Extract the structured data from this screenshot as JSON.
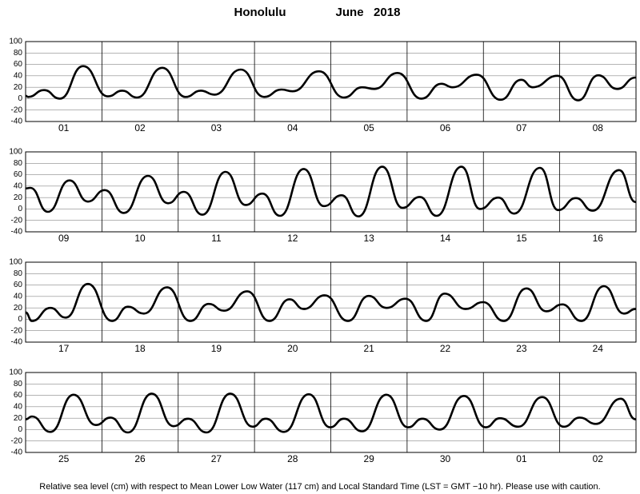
{
  "title": {
    "place": "Honolulu",
    "period": "June   2018"
  },
  "footnote": "Relative sea level (cm) with respect to Mean Lower Low Water (117 cm) and Local Standard Time (LST = GMT −10 hr). Please use with caution.",
  "chart_data": [
    {
      "type": "line",
      "color": "#000000",
      "categories": [
        "01",
        "02",
        "03",
        "04",
        "05",
        "06",
        "07",
        "08"
      ],
      "xlim": [
        0,
        192
      ],
      "xticks": [
        0,
        24,
        48,
        72,
        96,
        120,
        144,
        168,
        192
      ],
      "ylim": [
        -40,
        100
      ],
      "yticks": [
        100,
        80,
        60,
        40,
        20,
        0,
        -20,
        -40
      ],
      "grid": true,
      "x": [
        0,
        0.8,
        5.8,
        10.8,
        18.1,
        25.9,
        30.4,
        35.0,
        43.0,
        50.3,
        55.1,
        59.4,
        67.7,
        75.0,
        80.5,
        84.0,
        92.3,
        100.1,
        105.9,
        109.7,
        117.0,
        124.5,
        130.8,
        134.3,
        141.9,
        149.4,
        155.9,
        159.5,
        167.3,
        173.8,
        180.1,
        186.1,
        191.9
      ],
      "values": [
        5,
        3,
        15,
        0,
        57,
        4,
        14,
        2,
        54,
        3,
        14,
        7,
        51,
        3,
        16,
        13,
        48,
        2,
        20,
        17,
        45,
        0,
        26,
        20,
        42,
        -2,
        33,
        20,
        40,
        -3,
        41,
        17,
        37
      ]
    },
    {
      "type": "line",
      "color": "#000000",
      "categories": [
        "09",
        "10",
        "11",
        "12",
        "13",
        "14",
        "15",
        "16"
      ],
      "xlim": [
        0,
        192
      ],
      "xticks": [
        0,
        24,
        48,
        72,
        96,
        120,
        144,
        168,
        192
      ],
      "ylim": [
        -40,
        100
      ],
      "yticks": [
        100,
        80,
        60,
        40,
        20,
        0,
        -20,
        -40
      ],
      "grid": true,
      "x": [
        0,
        1.5,
        7.0,
        13.8,
        19.6,
        24.9,
        30.9,
        38.5,
        44.8,
        49.8,
        55.6,
        62.9,
        69.2,
        74.5,
        80.0,
        87.5,
        93.8,
        99.4,
        104.7,
        112.2,
        118.5,
        124.0,
        129.3,
        137.1,
        142.9,
        148.7,
        153.7,
        161.8,
        167.5,
        173.1,
        178.4,
        186.7,
        191.9
      ],
      "values": [
        36,
        37,
        -5,
        50,
        13,
        33,
        -7,
        58,
        10,
        30,
        -10,
        65,
        7,
        27,
        -12,
        70,
        5,
        24,
        -13,
        74,
        2,
        21,
        -12,
        74,
        0,
        20,
        -8,
        72,
        -2,
        19,
        -3,
        68,
        12
      ]
    },
    {
      "type": "line",
      "color": "#000000",
      "categories": [
        "17",
        "18",
        "19",
        "20",
        "21",
        "22",
        "23",
        "24"
      ],
      "xlim": [
        0,
        192
      ],
      "xticks": [
        0,
        24,
        48,
        72,
        96,
        120,
        144,
        168,
        192
      ],
      "ylim": [
        -40,
        100
      ],
      "yticks": [
        100,
        80,
        60,
        40,
        20,
        0,
        -20,
        -40
      ],
      "grid": true,
      "x": [
        0,
        2.0,
        7.8,
        12.6,
        19.6,
        27.2,
        32.2,
        37.2,
        44.5,
        51.8,
        57.6,
        62.4,
        69.7,
        76.7,
        83.0,
        87.5,
        94.1,
        101.4,
        107.9,
        113.5,
        119.5,
        126.0,
        131.8,
        138.4,
        143.9,
        150.4,
        157.5,
        163.8,
        168.8,
        174.8,
        181.9,
        188.2,
        191.9
      ],
      "values": [
        12,
        -3,
        20,
        3,
        62,
        -3,
        22,
        10,
        56,
        -3,
        27,
        15,
        49,
        -3,
        35,
        18,
        42,
        -3,
        41,
        20,
        36,
        -3,
        45,
        18,
        30,
        -3,
        54,
        14,
        26,
        -3,
        58,
        10,
        18
      ]
    },
    {
      "type": "line",
      "color": "#000000",
      "categories": [
        "25",
        "26",
        "27",
        "28",
        "29",
        "30",
        "01",
        "02"
      ],
      "xlim": [
        0,
        192
      ],
      "xticks": [
        0,
        24,
        48,
        72,
        96,
        120,
        144,
        168,
        192
      ],
      "ylim": [
        -40,
        100
      ],
      "yticks": [
        100,
        80,
        60,
        40,
        20,
        0,
        -20,
        -40
      ],
      "grid": true,
      "x": [
        0,
        2.0,
        7.8,
        15.1,
        22.1,
        26.7,
        32.2,
        39.7,
        46.5,
        51.1,
        56.9,
        64.4,
        71.4,
        75.5,
        81.3,
        89.1,
        95.8,
        100.1,
        105.9,
        113.5,
        120.3,
        124.8,
        130.3,
        137.9,
        144.7,
        149.2,
        155.0,
        162.5,
        169.3,
        174.3,
        179.4,
        187.2,
        191.9
      ],
      "values": [
        18,
        23,
        -4,
        61,
        8,
        21,
        -5,
        63,
        6,
        19,
        -5,
        63,
        5,
        19,
        -4,
        62,
        4,
        19,
        -3,
        61,
        4,
        19,
        0,
        59,
        4,
        20,
        5,
        57,
        5,
        21,
        10,
        54,
        18
      ]
    }
  ]
}
